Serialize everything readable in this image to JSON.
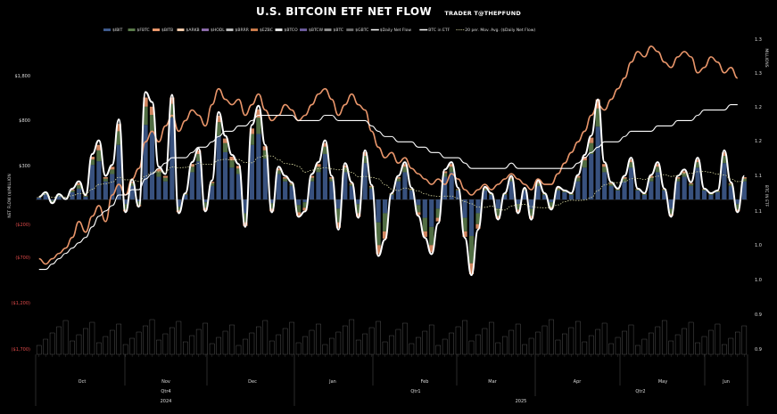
{
  "chart_data": {
    "type": "bar",
    "title": "U.S. BITCOIN ETF NET FLOW",
    "subtitle": "TRADER T@THEPFUND",
    "ylabel": "NET FLOW ($)MILLION",
    "y2label": "BTC IN ETF",
    "y3label": "MILLIONS",
    "ylim": [
      -1700,
      1800
    ],
    "y2lim": [
      0.8,
      1.4
    ],
    "left_ticks": [
      "$1,800",
      "$800",
      "$300",
      "($200)",
      "($700)",
      "($1,200)",
      "($1,700)"
    ],
    "right_ticks": [
      "1.3",
      "1.3",
      "1.2",
      "1.2",
      "1.1",
      "1.1",
      "1.0",
      "1.0",
      "0.9",
      "0.9",
      "0.8"
    ],
    "legend": [
      "$IBIT",
      "$FBTC",
      "$BITB",
      "$ARKB",
      "$HODL",
      "$BRRR",
      "$EZBC",
      "$BTCO",
      "$BTCW",
      "$BTC",
      "$GBTC",
      "$Daily Net Flow",
      "BTC in ETF",
      "20 per. Mov. Avg. ($Daily Net Flow)"
    ],
    "legend_placement": "top",
    "months": [
      "Oct",
      "Nov",
      "Dec",
      "Jan",
      "Feb",
      "Mar",
      "Apr",
      "May",
      "Jun"
    ],
    "quarters": [
      "Qtr4",
      "Qtr1",
      "Qtr2"
    ],
    "years": [
      "2024",
      "2025"
    ],
    "x_start": "2024-10-01",
    "x_end": "2025-06-18",
    "series": [
      {
        "name": "$IBIT",
        "values": [
          20,
          60,
          -10,
          40,
          5,
          80,
          120,
          30,
          380,
          420,
          200,
          280,
          600,
          -50,
          150,
          -20,
          820,
          750,
          250,
          200,
          900,
          -80,
          50,
          300,
          420,
          -30,
          150,
          700,
          520,
          350,
          280,
          -150,
          600,
          720,
          450,
          -40,
          280,
          200,
          150,
          -60,
          -30,
          200,
          300,
          500,
          200,
          -100,
          300,
          150,
          -50,
          400,
          120,
          -250,
          -150,
          50,
          200,
          300,
          100,
          -60,
          -200,
          -300,
          -100,
          250,
          300,
          100,
          -200,
          -400,
          -150,
          100,
          50,
          -100,
          50,
          200,
          -50,
          100,
          -100,
          150,
          50,
          -30,
          100,
          80,
          50,
          200,
          350,
          500,
          800,
          300,
          150,
          100,
          200,
          350,
          100,
          50,
          200,
          300,
          100,
          -100,
          200,
          250,
          150,
          350,
          100,
          50,
          80,
          400,
          150,
          -50,
          200
        ]
      },
      {
        "name": "$FBTC",
        "values": [
          5,
          10,
          -20,
          10,
          0,
          20,
          40,
          10,
          60,
          120,
          30,
          50,
          150,
          -60,
          30,
          -40,
          200,
          180,
          60,
          40,
          150,
          -40,
          10,
          60,
          80,
          -60,
          30,
          150,
          100,
          80,
          60,
          -100,
          120,
          180,
          90,
          -60,
          40,
          30,
          20,
          -80,
          -60,
          40,
          60,
          80,
          30,
          -150,
          50,
          20,
          -100,
          80,
          20,
          -250,
          -200,
          10,
          30,
          60,
          10,
          -80,
          -150,
          -200,
          -100,
          40,
          60,
          10,
          -150,
          -300,
          -120,
          20,
          10,
          -80,
          10,
          30,
          -60,
          10,
          -80,
          30,
          10,
          -50,
          20,
          10,
          10,
          40,
          80,
          120,
          200,
          60,
          20,
          10,
          30,
          60,
          10,
          10,
          40,
          60,
          10,
          -60,
          30,
          40,
          20,
          60,
          10,
          10,
          10,
          80,
          20,
          -60,
          30
        ]
      },
      {
        "name": "$BITB",
        "values": [
          2,
          5,
          -10,
          5,
          0,
          10,
          20,
          5,
          30,
          60,
          15,
          30,
          80,
          -20,
          15,
          -15,
          100,
          90,
          30,
          20,
          70,
          -20,
          5,
          30,
          40,
          -30,
          15,
          70,
          50,
          40,
          30,
          -40,
          60,
          90,
          45,
          -30,
          20,
          15,
          10,
          -40,
          -30,
          20,
          30,
          40,
          15,
          -60,
          25,
          10,
          -40,
          40,
          10,
          -100,
          -80,
          5,
          15,
          30,
          5,
          -30,
          -60,
          -80,
          -40,
          20,
          30,
          5,
          -60,
          -120,
          -50,
          10,
          5,
          -30,
          5,
          15,
          -30,
          5,
          -30,
          15,
          5,
          -20,
          10,
          5,
          5,
          20,
          40,
          60,
          100,
          30,
          10,
          5,
          15,
          30,
          5,
          5,
          20,
          30,
          5,
          -20,
          15,
          20,
          10,
          30,
          5,
          5,
          5,
          40,
          10,
          -20,
          15
        ]
      }
    ],
    "daily_net_flow": [
      30,
      80,
      -40,
      60,
      5,
      120,
      200,
      50,
      500,
      650,
      260,
      380,
      880,
      -140,
      220,
      -80,
      1180,
      1070,
      360,
      280,
      1150,
      -150,
      70,
      410,
      560,
      -130,
      210,
      960,
      700,
      490,
      390,
      -300,
      820,
      1030,
      600,
      -140,
      360,
      260,
      190,
      -190,
      -130,
      280,
      410,
      650,
      260,
      -330,
      400,
      190,
      -200,
      540,
      160,
      -620,
      -440,
      70,
      260,
      410,
      130,
      -180,
      -420,
      -600,
      -260,
      330,
      410,
      130,
      -420,
      -830,
      -330,
      140,
      70,
      -220,
      70,
      260,
      -150,
      130,
      -220,
      210,
      70,
      -110,
      140,
      100,
      70,
      270,
      490,
      700,
      1100,
      410,
      190,
      120,
      260,
      460,
      120,
      70,
      270,
      410,
      120,
      -190,
      260,
      330,
      190,
      460,
      120,
      70,
      100,
      540,
      190,
      -140,
      260
    ],
    "btc_in_etf": [
      0.96,
      0.96,
      0.97,
      0.98,
      0.99,
      1.0,
      1.01,
      1.02,
      1.04,
      1.06,
      1.07,
      1.08,
      1.1,
      1.1,
      1.11,
      1.11,
      1.13,
      1.14,
      1.15,
      1.16,
      1.17,
      1.17,
      1.17,
      1.18,
      1.19,
      1.19,
      1.2,
      1.21,
      1.22,
      1.22,
      1.23,
      1.23,
      1.24,
      1.25,
      1.25,
      1.25,
      1.25,
      1.25,
      1.25,
      1.24,
      1.24,
      1.24,
      1.24,
      1.25,
      1.25,
      1.24,
      1.24,
      1.24,
      1.24,
      1.24,
      1.23,
      1.22,
      1.21,
      1.21,
      1.2,
      1.2,
      1.2,
      1.19,
      1.19,
      1.18,
      1.18,
      1.17,
      1.17,
      1.17,
      1.16,
      1.15,
      1.15,
      1.15,
      1.15,
      1.15,
      1.15,
      1.16,
      1.15,
      1.15,
      1.15,
      1.15,
      1.15,
      1.15,
      1.15,
      1.15,
      1.15,
      1.16,
      1.17,
      1.18,
      1.19,
      1.2,
      1.2,
      1.2,
      1.21,
      1.22,
      1.22,
      1.22,
      1.22,
      1.23,
      1.23,
      1.23,
      1.24,
      1.24,
      1.24,
      1.25,
      1.26,
      1.26,
      1.26,
      1.26,
      1.27,
      1.27
    ],
    "btc_price_line": [
      0.98,
      0.97,
      0.98,
      0.99,
      1.0,
      1.02,
      1.05,
      1.03,
      1.06,
      1.08,
      1.05,
      1.1,
      1.12,
      1.1,
      1.13,
      1.15,
      1.2,
      1.22,
      1.2,
      1.23,
      1.25,
      1.22,
      1.24,
      1.26,
      1.25,
      1.23,
      1.27,
      1.3,
      1.28,
      1.27,
      1.28,
      1.25,
      1.27,
      1.29,
      1.26,
      1.24,
      1.25,
      1.27,
      1.26,
      1.24,
      1.25,
      1.27,
      1.29,
      1.3,
      1.28,
      1.25,
      1.27,
      1.29,
      1.27,
      1.26,
      1.22,
      1.19,
      1.17,
      1.18,
      1.16,
      1.17,
      1.15,
      1.14,
      1.13,
      1.12,
      1.13,
      1.12,
      1.14,
      1.13,
      1.11,
      1.1,
      1.11,
      1.12,
      1.11,
      1.12,
      1.13,
      1.14,
      1.13,
      1.12,
      1.11,
      1.13,
      1.12,
      1.12,
      1.14,
      1.16,
      1.18,
      1.2,
      1.22,
      1.25,
      1.27,
      1.26,
      1.28,
      1.3,
      1.32,
      1.35,
      1.37,
      1.36,
      1.38,
      1.37,
      1.35,
      1.34,
      1.36,
      1.37,
      1.36,
      1.33,
      1.34,
      1.36,
      1.35,
      1.33,
      1.34,
      1.32
    ]
  },
  "colors": {
    "IBIT": "#3e5a8c",
    "FBTC": "#5a7a4a",
    "BITB": "#e8956a",
    "ARKB": "#f0c8a8",
    "HODL": "#8a6aa8",
    "BRRR": "#b8b8b8",
    "EZBC": "#c87a4a",
    "BTCO": "#e0e0e0",
    "BTCW": "#6a5a9a",
    "BTC": "#8a8a8a",
    "GBTC": "#6a6a6a",
    "daily": "#ffffff",
    "btc_line": "#e8956a",
    "etf_line": "#ffffff",
    "mov_avg": "#d8d8a0",
    "neg_label": "#e04a4a"
  }
}
